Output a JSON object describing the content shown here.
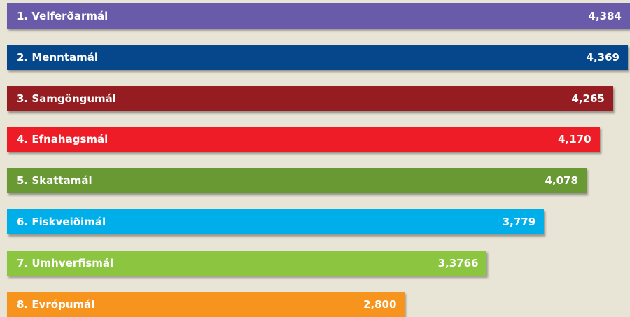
{
  "chart_data": {
    "type": "bar",
    "orientation": "horizontal",
    "categories": [
      "1. Velferðarmál",
      "2. Menntamál",
      "3. Samgöngumál",
      "4. Efnahagsmál",
      "5. Skattamál",
      "6. Fiskveiðimál",
      "7. Umhverfismál",
      "8. Evrópumál"
    ],
    "values": [
      4.384,
      4.369,
      4.265,
      4.17,
      4.078,
      3.779,
      3.3766,
      2.8
    ],
    "value_labels": [
      "4,384",
      "4,369",
      "4,265",
      "4,170",
      "4,078",
      "3,779",
      "3,3766",
      "2,800"
    ],
    "colors": [
      "#6a5aaa",
      "#05478a",
      "#951c20",
      "#ee1c27",
      "#699933",
      "#00aeea",
      "#8cc640",
      "#f7941d"
    ],
    "grid": false,
    "legend": "none"
  }
}
